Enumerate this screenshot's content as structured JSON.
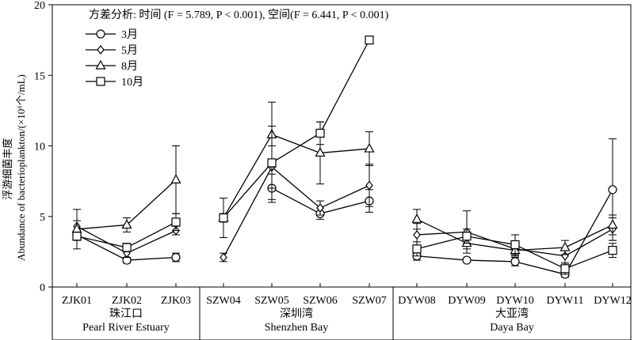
{
  "chart_data": {
    "type": "line",
    "title": "",
    "annotation": "方差分析: 时间 (F = 5.789, P < 0.001), 空间(F = 6.441, P < 0.001)",
    "ylabel": "浮游细菌丰度 Abundance of bacterioplankton/(×10⁶个/mL)",
    "ylim": [
      0,
      20
    ],
    "yticks": [
      0,
      5,
      10,
      15,
      20
    ],
    "categories": [
      "ZJK01",
      "ZJK02",
      "ZJK03",
      "SZW04",
      "SZW05",
      "SZW06",
      "SZW07",
      "DYW08",
      "DYW09",
      "DYW10",
      "DYW11",
      "DYW12"
    ],
    "groups": [
      {
        "cn": "珠江口",
        "en": "Pearl River Estuary",
        "start": 0,
        "end": 2
      },
      {
        "cn": "深圳湾",
        "en": "Shenzhen Bay",
        "start": 3,
        "end": 6
      },
      {
        "cn": "大亚湾",
        "en": "Daya Bay",
        "start": 7,
        "end": 11
      }
    ],
    "legend_position": "top-left",
    "series": [
      {
        "name": "3月",
        "marker": "circle",
        "values": [
          3.7,
          1.9,
          2.1,
          null,
          7.0,
          5.2,
          6.1,
          2.2,
          1.9,
          1.8,
          0.9,
          6.9
        ],
        "errors": [
          0.3,
          0.2,
          0.3,
          null,
          1.0,
          0.4,
          0.8,
          0.3,
          0.15,
          0.3,
          0.2,
          3.6
        ]
      },
      {
        "name": "5月",
        "marker": "diamond",
        "values": [
          4.3,
          2.4,
          4.0,
          2.1,
          8.5,
          5.6,
          7.2,
          3.7,
          3.9,
          2.7,
          2.2,
          4.1
        ],
        "errors": [
          0.4,
          0.3,
          0.3,
          0.3,
          1.5,
          0.5,
          1.5,
          0.8,
          1.5,
          0.5,
          0.5,
          0.8
        ]
      },
      {
        "name": "8月",
        "marker": "triangle",
        "values": [
          4.1,
          4.4,
          7.6,
          4.9,
          10.8,
          9.5,
          9.8,
          4.8,
          3.1,
          2.6,
          2.8,
          4.4
        ],
        "errors": [
          1.4,
          0.5,
          2.4,
          1.4,
          2.3,
          2.2,
          1.2,
          0.7,
          0.4,
          0.4,
          0.5,
          0.7
        ]
      },
      {
        "name": "10月",
        "marker": "square",
        "values": [
          3.6,
          2.8,
          4.6,
          4.9,
          8.8,
          10.9,
          17.5,
          2.7,
          3.6,
          3.0,
          1.3,
          2.6
        ],
        "errors": [
          0.3,
          0.3,
          0.6,
          0.3,
          2.6,
          0.8,
          0.15,
          0.5,
          0.5,
          0.7,
          0.4,
          0.5
        ]
      }
    ]
  },
  "ui": {
    "annotation_text": "方差分析: 时间 (F = 5.789, P < 0.001), 空间(F = 6.441, P < 0.001)",
    "ylabel_cn": "浮游细菌丰度",
    "ylabel_en": "Abundance of bacterioplankton/(×10⁶个/mL)"
  }
}
